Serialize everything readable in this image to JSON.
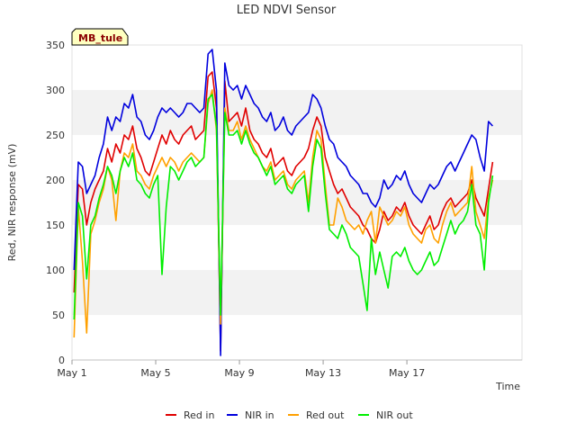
{
  "chart_data": {
    "type": "line",
    "title": "LED NDVI Sensor",
    "badge": "MB_tule",
    "xlabel": "Time",
    "ylabel": "Red, NIR response (mV)",
    "xlim": [
      0,
      21.5
    ],
    "ylim": [
      0,
      350
    ],
    "yticks": [
      0,
      50,
      100,
      150,
      200,
      250,
      300,
      350
    ],
    "xticks": [
      {
        "day": 0,
        "label": "May 1"
      },
      {
        "day": 4,
        "label": "May 5"
      },
      {
        "day": 8,
        "label": "May 9"
      },
      {
        "day": 12,
        "label": "May 13"
      },
      {
        "day": 16,
        "label": "May 17"
      }
    ],
    "grid": "alternating horizontal bands",
    "legend_position": "bottom",
    "series": [
      {
        "name": "Red in",
        "color": "#e00000",
        "x": [
          0.1,
          0.3,
          0.5,
          0.7,
          0.9,
          1.1,
          1.3,
          1.5,
          1.7,
          1.9,
          2.1,
          2.3,
          2.5,
          2.7,
          2.9,
          3.1,
          3.3,
          3.5,
          3.7,
          3.9,
          4.1,
          4.3,
          4.5,
          4.7,
          4.9,
          5.1,
          5.3,
          5.5,
          5.7,
          5.9,
          6.1,
          6.3,
          6.5,
          6.7,
          6.9,
          7.1,
          7.3,
          7.5,
          7.7,
          7.9,
          8.1,
          8.3,
          8.5,
          8.7,
          8.9,
          9.1,
          9.3,
          9.5,
          9.7,
          9.9,
          10.1,
          10.3,
          10.5,
          10.7,
          10.9,
          11.1,
          11.3,
          11.5,
          11.7,
          11.9,
          12.1,
          12.3,
          12.5,
          12.7,
          12.9,
          13.1,
          13.3,
          13.5,
          13.7,
          13.9,
          14.1,
          14.3,
          14.5,
          14.7,
          14.9,
          15.1,
          15.3,
          15.5,
          15.7,
          15.9,
          16.1,
          16.3,
          16.5,
          16.7,
          16.9,
          17.1,
          17.3,
          17.5,
          17.7,
          17.9,
          18.1,
          18.3,
          18.5,
          18.7,
          18.9,
          19.1,
          19.3,
          19.5,
          19.7,
          19.9,
          20.1
        ],
        "y": [
          75,
          195,
          190,
          150,
          175,
          190,
          200,
          210,
          235,
          220,
          240,
          230,
          250,
          245,
          260,
          235,
          225,
          210,
          205,
          220,
          235,
          250,
          240,
          255,
          245,
          240,
          250,
          255,
          260,
          245,
          250,
          255,
          315,
          320,
          280,
          10,
          310,
          265,
          270,
          275,
          260,
          280,
          255,
          245,
          240,
          230,
          225,
          235,
          215,
          220,
          225,
          210,
          205,
          215,
          220,
          225,
          235,
          255,
          270,
          260,
          225,
          210,
          195,
          185,
          190,
          180,
          170,
          165,
          160,
          150,
          145,
          135,
          130,
          145,
          165,
          155,
          160,
          170,
          165,
          175,
          160,
          150,
          145,
          140,
          150,
          160,
          145,
          150,
          165,
          175,
          180,
          170,
          175,
          180,
          185,
          200,
          180,
          170,
          160,
          190,
          220
        ]
      },
      {
        "name": "NIR in",
        "color": "#0000dd",
        "x": [
          0.1,
          0.3,
          0.5,
          0.7,
          0.9,
          1.1,
          1.3,
          1.5,
          1.7,
          1.9,
          2.1,
          2.3,
          2.5,
          2.7,
          2.9,
          3.1,
          3.3,
          3.5,
          3.7,
          3.9,
          4.1,
          4.3,
          4.5,
          4.7,
          4.9,
          5.1,
          5.3,
          5.5,
          5.7,
          5.9,
          6.1,
          6.3,
          6.5,
          6.7,
          6.9,
          7.1,
          7.3,
          7.5,
          7.7,
          7.9,
          8.1,
          8.3,
          8.5,
          8.7,
          8.9,
          9.1,
          9.3,
          9.5,
          9.7,
          9.9,
          10.1,
          10.3,
          10.5,
          10.7,
          10.9,
          11.1,
          11.3,
          11.5,
          11.7,
          11.9,
          12.1,
          12.3,
          12.5,
          12.7,
          12.9,
          13.1,
          13.3,
          13.5,
          13.7,
          13.9,
          14.1,
          14.3,
          14.5,
          14.7,
          14.9,
          15.1,
          15.3,
          15.5,
          15.7,
          15.9,
          16.1,
          16.3,
          16.5,
          16.7,
          16.9,
          17.1,
          17.3,
          17.5,
          17.7,
          17.9,
          18.1,
          18.3,
          18.5,
          18.7,
          18.9,
          19.1,
          19.3,
          19.5,
          19.7,
          19.9,
          20.1
        ],
        "y": [
          100,
          220,
          215,
          185,
          195,
          205,
          225,
          240,
          270,
          255,
          270,
          265,
          285,
          280,
          295,
          270,
          265,
          250,
          245,
          255,
          270,
          280,
          275,
          280,
          275,
          270,
          275,
          285,
          285,
          280,
          275,
          280,
          340,
          345,
          300,
          5,
          330,
          305,
          300,
          305,
          290,
          305,
          295,
          285,
          280,
          270,
          265,
          275,
          255,
          260,
          270,
          255,
          250,
          260,
          265,
          270,
          275,
          295,
          290,
          280,
          260,
          245,
          240,
          225,
          220,
          215,
          205,
          200,
          195,
          185,
          185,
          175,
          170,
          180,
          200,
          190,
          195,
          205,
          200,
          210,
          195,
          185,
          180,
          175,
          185,
          195,
          190,
          195,
          205,
          215,
          220,
          210,
          220,
          230,
          240,
          250,
          245,
          225,
          210,
          265,
          260
        ]
      },
      {
        "name": "Red out",
        "color": "#ffa000",
        "x": [
          0.1,
          0.3,
          0.5,
          0.7,
          0.9,
          1.1,
          1.3,
          1.5,
          1.7,
          1.9,
          2.1,
          2.3,
          2.5,
          2.7,
          2.9,
          3.1,
          3.3,
          3.5,
          3.7,
          3.9,
          4.1,
          4.3,
          4.5,
          4.7,
          4.9,
          5.1,
          5.3,
          5.5,
          5.7,
          5.9,
          6.1,
          6.3,
          6.5,
          6.7,
          6.9,
          7.1,
          7.3,
          7.5,
          7.7,
          7.9,
          8.1,
          8.3,
          8.5,
          8.7,
          8.9,
          9.1,
          9.3,
          9.5,
          9.7,
          9.9,
          10.1,
          10.3,
          10.5,
          10.7,
          10.9,
          11.1,
          11.3,
          11.5,
          11.7,
          11.9,
          12.1,
          12.3,
          12.5,
          12.7,
          12.9,
          13.1,
          13.3,
          13.5,
          13.7,
          13.9,
          14.1,
          14.3,
          14.5,
          14.7,
          14.9,
          15.1,
          15.3,
          15.5,
          15.7,
          15.9,
          16.1,
          16.3,
          16.5,
          16.7,
          16.9,
          17.1,
          17.3,
          17.5,
          17.7,
          17.9,
          18.1,
          18.3,
          18.5,
          18.7,
          18.9,
          19.1,
          19.3,
          19.5,
          19.7,
          19.9,
          20.1
        ],
        "y": [
          25,
          170,
          110,
          30,
          140,
          155,
          175,
          190,
          215,
          200,
          155,
          210,
          230,
          225,
          240,
          210,
          205,
          195,
          190,
          205,
          215,
          225,
          215,
          225,
          220,
          210,
          220,
          225,
          230,
          225,
          220,
          225,
          285,
          300,
          255,
          40,
          280,
          255,
          255,
          265,
          245,
          260,
          245,
          235,
          225,
          215,
          210,
          220,
          200,
          205,
          210,
          195,
          190,
          200,
          205,
          210,
          175,
          225,
          255,
          245,
          195,
          150,
          150,
          180,
          170,
          155,
          150,
          145,
          150,
          140,
          155,
          165,
          130,
          170,
          160,
          150,
          155,
          165,
          160,
          170,
          150,
          140,
          135,
          130,
          145,
          150,
          135,
          130,
          150,
          165,
          175,
          160,
          165,
          170,
          175,
          215,
          165,
          150,
          135,
          180,
          200
        ]
      },
      {
        "name": "NIR out",
        "color": "#00ee00",
        "x": [
          0.1,
          0.3,
          0.5,
          0.7,
          0.9,
          1.1,
          1.3,
          1.5,
          1.7,
          1.9,
          2.1,
          2.3,
          2.5,
          2.7,
          2.9,
          3.1,
          3.3,
          3.5,
          3.7,
          3.9,
          4.1,
          4.3,
          4.5,
          4.7,
          4.9,
          5.1,
          5.3,
          5.5,
          5.7,
          5.9,
          6.1,
          6.3,
          6.5,
          6.7,
          6.9,
          7.1,
          7.3,
          7.5,
          7.7,
          7.9,
          8.1,
          8.3,
          8.5,
          8.7,
          8.9,
          9.1,
          9.3,
          9.5,
          9.7,
          9.9,
          10.1,
          10.3,
          10.5,
          10.7,
          10.9,
          11.1,
          11.3,
          11.5,
          11.7,
          11.9,
          12.1,
          12.3,
          12.5,
          12.7,
          12.9,
          13.1,
          13.3,
          13.5,
          13.7,
          13.9,
          14.1,
          14.3,
          14.5,
          14.7,
          14.9,
          15.1,
          15.3,
          15.5,
          15.7,
          15.9,
          16.1,
          16.3,
          16.5,
          16.7,
          16.9,
          17.1,
          17.3,
          17.5,
          17.7,
          17.9,
          18.1,
          18.3,
          18.5,
          18.7,
          18.9,
          19.1,
          19.3,
          19.5,
          19.7,
          19.9,
          20.1
        ],
        "y": [
          45,
          175,
          160,
          90,
          150,
          160,
          180,
          195,
          215,
          205,
          185,
          210,
          225,
          215,
          230,
          200,
          195,
          185,
          180,
          195,
          205,
          95,
          170,
          215,
          210,
          200,
          210,
          220,
          225,
          215,
          220,
          225,
          290,
          295,
          260,
          50,
          275,
          250,
          250,
          255,
          240,
          255,
          240,
          230,
          225,
          215,
          205,
          215,
          195,
          200,
          205,
          190,
          185,
          195,
          200,
          205,
          165,
          215,
          245,
          235,
          185,
          145,
          140,
          135,
          150,
          140,
          125,
          120,
          115,
          85,
          55,
          135,
          95,
          120,
          100,
          80,
          115,
          120,
          115,
          125,
          110,
          100,
          95,
          100,
          110,
          120,
          105,
          110,
          125,
          140,
          155,
          140,
          150,
          155,
          165,
          195,
          150,
          140,
          100,
          175,
          205
        ]
      }
    ]
  }
}
